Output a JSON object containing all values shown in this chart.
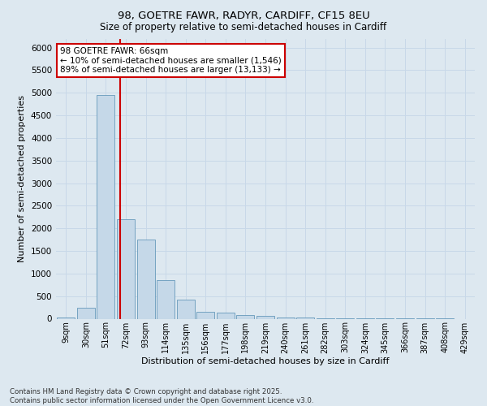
{
  "title1": "98, GOETRE FAWR, RADYR, CARDIFF, CF15 8EU",
  "title2": "Size of property relative to semi-detached houses in Cardiff",
  "xlabel": "Distribution of semi-detached houses by size in Cardiff",
  "ylabel": "Number of semi-detached properties",
  "footer1": "Contains HM Land Registry data © Crown copyright and database right 2025.",
  "footer2": "Contains public sector information licensed under the Open Government Licence v3.0.",
  "bar_labels": [
    "9sqm",
    "30sqm",
    "51sqm",
    "72sqm",
    "93sqm",
    "114sqm",
    "135sqm",
    "156sqm",
    "177sqm",
    "198sqm",
    "219sqm",
    "240sqm",
    "261sqm",
    "282sqm",
    "303sqm",
    "324sqm",
    "345sqm",
    "366sqm",
    "387sqm",
    "408sqm",
    "429sqm"
  ],
  "bar_values": [
    30,
    240,
    4950,
    2200,
    1750,
    850,
    430,
    160,
    130,
    80,
    55,
    35,
    22,
    12,
    7,
    4,
    3,
    2,
    1,
    1,
    0
  ],
  "bar_color": "#c5d8e8",
  "bar_edge_color": "#6699bb",
  "grid_color": "#c8d8e8",
  "background_color": "#dde8f0",
  "vline_x_index": 2.72,
  "vline_color": "#cc0000",
  "annotation_line1": "98 GOETRE FAWR: 66sqm",
  "annotation_line2": "← 10% of semi-detached houses are smaller (1,546)",
  "annotation_line3": "89% of semi-detached houses are larger (13,133) →",
  "annotation_box_color": "#cc0000",
  "ylim": [
    0,
    6200
  ],
  "yticks": [
    0,
    500,
    1000,
    1500,
    2000,
    2500,
    3000,
    3500,
    4000,
    4500,
    5000,
    5500,
    6000
  ]
}
